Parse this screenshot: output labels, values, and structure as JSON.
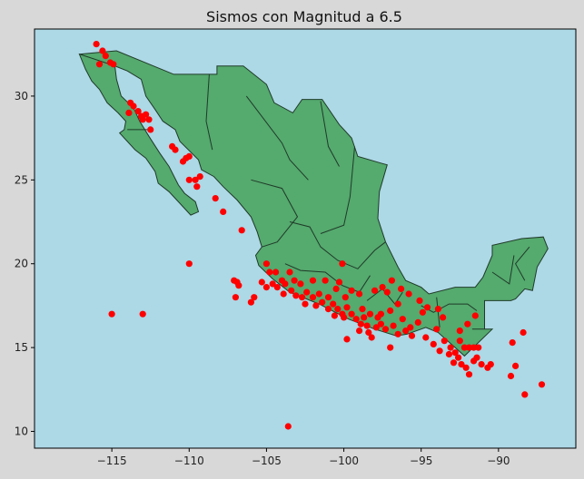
{
  "chart_data": {
    "type": "scatter",
    "title": "Sismos con Magnitud a 6.5",
    "xlabel": "",
    "ylabel": "",
    "xlim": [
      -120,
      -85
    ],
    "ylim": [
      9,
      34
    ],
    "xticks": [
      -115,
      -110,
      -105,
      -100,
      -95,
      -90
    ],
    "yticks": [
      10,
      15,
      20,
      25,
      30
    ],
    "grid": false,
    "colors": {
      "figure_bg": "#d8d8d8",
      "plot_bg": "#add8e6",
      "land": "#55aa6e",
      "borders": "#1f3a28",
      "points": "#ff0000"
    },
    "series": [
      {
        "points": [
          [
            -116.0,
            33.1
          ],
          [
            -115.6,
            32.7
          ],
          [
            -115.4,
            32.4
          ],
          [
            -115.8,
            31.9
          ],
          [
            -115.1,
            32.0
          ],
          [
            -114.9,
            31.9
          ],
          [
            -113.8,
            29.6
          ],
          [
            -113.6,
            29.4
          ],
          [
            -113.3,
            29.1
          ],
          [
            -113.1,
            28.8
          ],
          [
            -112.8,
            28.9
          ],
          [
            -112.6,
            28.6
          ],
          [
            -112.5,
            28.0
          ],
          [
            -113.9,
            29.0
          ],
          [
            -113.0,
            28.6
          ],
          [
            -111.1,
            27.0
          ],
          [
            -110.9,
            26.8
          ],
          [
            -110.2,
            26.3
          ],
          [
            -110.4,
            26.1
          ],
          [
            -110.0,
            26.4
          ],
          [
            -110.0,
            25.0
          ],
          [
            -109.6,
            25.0
          ],
          [
            -109.3,
            25.2
          ],
          [
            -109.5,
            24.6
          ],
          [
            -108.3,
            23.9
          ],
          [
            -107.8,
            23.1
          ],
          [
            -106.6,
            22.0
          ],
          [
            -110.0,
            20.0
          ],
          [
            -115.0,
            17.0
          ],
          [
            -113.0,
            17.0
          ],
          [
            -103.6,
            10.3
          ],
          [
            -107.1,
            19.0
          ],
          [
            -106.9,
            18.9
          ],
          [
            -106.8,
            18.7
          ],
          [
            -107.0,
            18.0
          ],
          [
            -106.0,
            17.7
          ],
          [
            -105.8,
            18.0
          ],
          [
            -105.3,
            18.9
          ],
          [
            -105.0,
            18.6
          ],
          [
            -104.6,
            18.8
          ],
          [
            -104.3,
            18.6
          ],
          [
            -104.0,
            19.0
          ],
          [
            -103.8,
            18.8
          ],
          [
            -105.0,
            20.0
          ],
          [
            -104.8,
            19.5
          ],
          [
            -104.4,
            19.5
          ],
          [
            -103.5,
            19.5
          ],
          [
            -103.2,
            19.0
          ],
          [
            -103.4,
            18.4
          ],
          [
            -103.1,
            18.1
          ],
          [
            -102.7,
            18.0
          ],
          [
            -102.4,
            18.3
          ],
          [
            -102.0,
            18.0
          ],
          [
            -101.6,
            18.2
          ],
          [
            -101.4,
            17.7
          ],
          [
            -101.0,
            17.3
          ],
          [
            -100.7,
            17.6
          ],
          [
            -100.4,
            17.3
          ],
          [
            -100.1,
            17.0
          ],
          [
            -100.0,
            16.8
          ],
          [
            -99.8,
            17.4
          ],
          [
            -99.5,
            17.0
          ],
          [
            -99.2,
            16.7
          ],
          [
            -98.9,
            16.4
          ],
          [
            -98.7,
            16.8
          ],
          [
            -98.5,
            16.3
          ],
          [
            -98.4,
            15.9
          ],
          [
            -98.2,
            15.6
          ],
          [
            -97.9,
            16.2
          ],
          [
            -97.6,
            16.4
          ],
          [
            -97.3,
            16.1
          ],
          [
            -97.0,
            15.0
          ],
          [
            -96.8,
            16.3
          ],
          [
            -96.5,
            15.8
          ],
          [
            -96.0,
            16.0
          ],
          [
            -95.7,
            16.2
          ],
          [
            -95.2,
            16.5
          ],
          [
            -94.7,
            15.6
          ],
          [
            -94.2,
            15.2
          ],
          [
            -93.8,
            14.8
          ],
          [
            -93.5,
            15.4
          ],
          [
            -93.1,
            15.0
          ],
          [
            -92.8,
            14.7
          ],
          [
            -92.6,
            14.4
          ],
          [
            -92.4,
            14.0
          ],
          [
            -92.1,
            13.8
          ],
          [
            -91.9,
            13.4
          ],
          [
            -91.6,
            14.2
          ],
          [
            -91.4,
            14.4
          ],
          [
            -91.1,
            14.0
          ],
          [
            -90.7,
            13.8
          ],
          [
            -90.5,
            14.0
          ],
          [
            -92.2,
            15.0
          ],
          [
            -91.9,
            15.0
          ],
          [
            -91.6,
            15.0
          ],
          [
            -91.3,
            15.0
          ],
          [
            -92.0,
            16.4
          ],
          [
            -92.5,
            16.0
          ],
          [
            -92.9,
            14.1
          ],
          [
            -93.2,
            14.6
          ],
          [
            -92.5,
            15.4
          ],
          [
            -91.5,
            16.9
          ],
          [
            -102.0,
            19.0
          ],
          [
            -101.2,
            19.0
          ],
          [
            -100.5,
            18.5
          ],
          [
            -99.5,
            18.4
          ],
          [
            -99.0,
            18.2
          ],
          [
            -98.0,
            18.4
          ],
          [
            -97.5,
            18.6
          ],
          [
            -97.2,
            18.3
          ],
          [
            -96.3,
            18.5
          ],
          [
            -95.8,
            18.2
          ],
          [
            -95.1,
            17.8
          ],
          [
            -94.6,
            17.4
          ],
          [
            -93.9,
            17.3
          ],
          [
            -93.6,
            16.8
          ],
          [
            -94.9,
            17.1
          ],
          [
            -96.9,
            19.0
          ],
          [
            -99.8,
            15.5
          ],
          [
            -100.1,
            20.0
          ],
          [
            -98.8,
            17.3
          ],
          [
            -98.3,
            17.0
          ],
          [
            -97.8,
            16.8
          ],
          [
            -97.0,
            17.2
          ],
          [
            -96.5,
            17.6
          ],
          [
            -101.8,
            17.5
          ],
          [
            -89.2,
            13.3
          ],
          [
            -88.9,
            13.9
          ],
          [
            -89.1,
            15.3
          ],
          [
            -88.4,
            15.9
          ],
          [
            -88.3,
            12.2
          ],
          [
            -87.2,
            12.8
          ],
          [
            -94.0,
            16.1
          ],
          [
            -95.6,
            15.7
          ],
          [
            -96.2,
            16.7
          ],
          [
            -97.6,
            17.0
          ],
          [
            -99.0,
            16.0
          ],
          [
            -100.6,
            16.9
          ],
          [
            -101.0,
            18.0
          ],
          [
            -99.9,
            18.0
          ],
          [
            -102.5,
            17.6
          ],
          [
            -103.9,
            18.2
          ],
          [
            -102.8,
            18.8
          ],
          [
            -100.3,
            18.9
          ]
        ]
      }
    ]
  }
}
